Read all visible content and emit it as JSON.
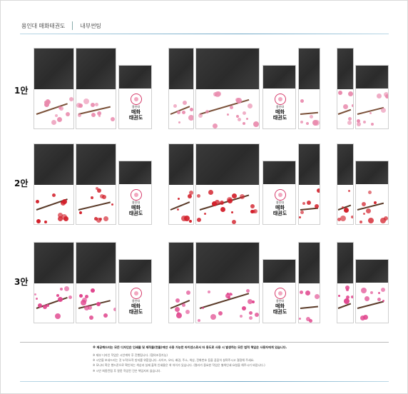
{
  "header": {
    "title": "용인대 매화태권도",
    "subtitle": "내부썬팅"
  },
  "rows": [
    {
      "label": "1안",
      "variant": "pink"
    },
    {
      "label": "2안",
      "variant": "red"
    },
    {
      "label": "3안",
      "variant": "magenta"
    }
  ],
  "logo": {
    "line1": "용인대",
    "line2": "매화",
    "line3": "태권도"
  },
  "footer": {
    "main": "※ 제공해드리는 모든 디자인은 인쇄물 및 제작물(현물)에만 사용 가능한 라이센스로서 타 용도로 사용 시 발생하는 모든 법적 책임은 사용자에게 있습니다.",
    "notes": [
      "※ 재부 디자인 작업은 시안계약 후 진행됩니다. (협의조정가능)",
      "※ 시안을 보내드리는 것 누락/오작 방지를 위함입니다. 사이즈, 오타, 배경, 주소, 색상, 전화번호 등을 꼼꼼히 살펴주시고 결정해 주세요.",
      "※ 모니터 혹은 핸드폰으로 확인하는 색상과 실제 출력 인쇄물은 색 차이가 있습니다. (컬러가 중요한 작업은 별색인쇄 요청을 해주시기 바랍니다.)",
      "※ 시안 최종컨펌 후 잘못 작업된 건은 책임지지 않습니다."
    ]
  },
  "colors": {
    "pink": "#e98aad",
    "red": "#d21f2a",
    "magenta": "#e0448c",
    "accent_line": "#6fa7c6",
    "panel_dark": "#2e2e2e"
  }
}
